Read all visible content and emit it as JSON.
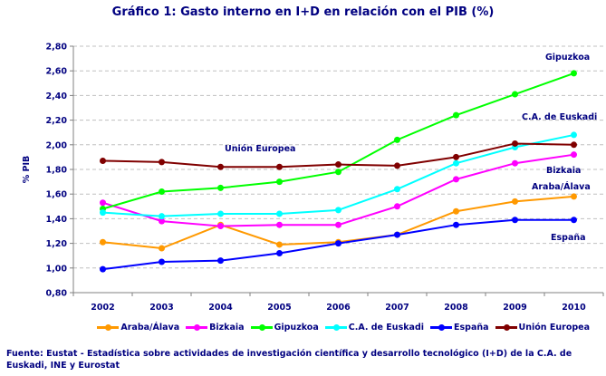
{
  "chart_data": {
    "type": "line",
    "title": "Gráfico 1: Gasto interno en I+D en relación con el PIB (%)",
    "ylabel": "% PIB",
    "xlabel": "",
    "ylim": [
      0.8,
      2.8
    ],
    "yticks": [
      "0,80",
      "1,00",
      "1,20",
      "1,40",
      "1,60",
      "1,80",
      "2,00",
      "2,20",
      "2,40",
      "2,60",
      "2,80"
    ],
    "grid": true,
    "legend_placement": "bottom",
    "categories": [
      "2002",
      "2003",
      "2004",
      "2005",
      "2006",
      "2007",
      "2008",
      "2009",
      "2010"
    ],
    "series": [
      {
        "name": "Araba/Álava",
        "color": "#FF9900",
        "values": [
          1.21,
          1.16,
          1.35,
          1.19,
          1.21,
          1.27,
          1.46,
          1.54,
          1.58
        ]
      },
      {
        "name": "Bizkaia",
        "color": "#FF00FF",
        "values": [
          1.53,
          1.38,
          1.34,
          1.35,
          1.35,
          1.5,
          1.72,
          1.85,
          1.92
        ]
      },
      {
        "name": "Gipuzkoa",
        "color": "#00FF00",
        "values": [
          1.48,
          1.62,
          1.65,
          1.7,
          1.78,
          2.04,
          2.24,
          2.41,
          2.58
        ]
      },
      {
        "name": "C.A. de Euskadi",
        "color": "#00FFFF",
        "values": [
          1.45,
          1.42,
          1.44,
          1.44,
          1.47,
          1.64,
          1.85,
          1.98,
          2.08
        ]
      },
      {
        "name": "España",
        "color": "#0000FF",
        "values": [
          0.99,
          1.05,
          1.06,
          1.12,
          1.2,
          1.27,
          1.35,
          1.39,
          1.39
        ]
      },
      {
        "name": "Unión Europea",
        "color": "#800000",
        "values": [
          1.87,
          1.86,
          1.82,
          1.82,
          1.84,
          1.83,
          1.9,
          2.01,
          2.0
        ]
      }
    ],
    "annotations": [
      "Gipuzkoa",
      "C.A. de Euskadi",
      "Unión Europea",
      "Bizkaia",
      "Araba/Álava",
      "España"
    ]
  },
  "source": "Fuente: Eustat - Estadística sobre actividades de investigación científica y desarrollo tecnológico (I+D) de la C.A. de Euskadi, INE y  Eurostat"
}
